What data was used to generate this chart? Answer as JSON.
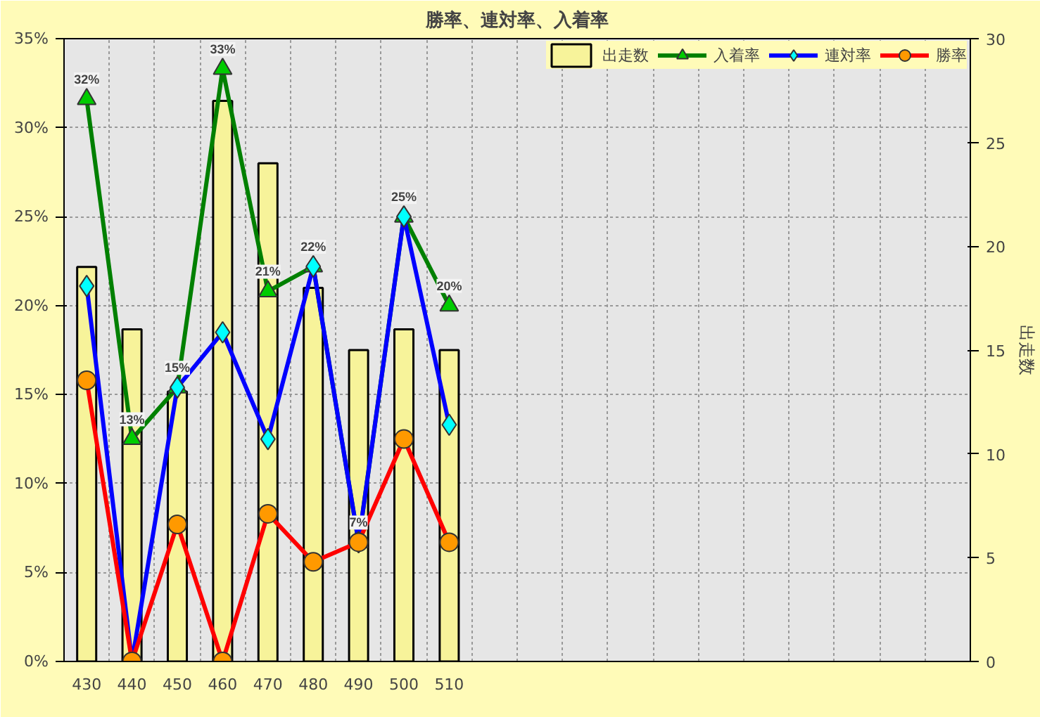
{
  "chart_data": {
    "type": "line",
    "title": "勝率、連対率、入着率",
    "y2label": "出走数",
    "categories": [
      "430",
      "440",
      "450",
      "460",
      "470",
      "480",
      "490",
      "500",
      "510",
      null,
      null,
      null,
      null,
      null,
      null,
      null,
      null,
      null,
      null,
      null
    ],
    "series": [
      {
        "name": "出走数",
        "type": "bar",
        "axis": "y2",
        "color": "#f7f39a",
        "values": [
          19,
          16,
          13,
          27,
          24,
          18,
          15,
          16,
          15,
          null,
          null,
          null,
          null,
          null,
          null,
          null,
          null,
          null,
          null,
          null
        ]
      },
      {
        "name": "入着率",
        "marker": "triangle",
        "color": "#008000",
        "values": [
          31.6,
          12.5,
          15.4,
          33.3,
          20.8,
          22.2,
          6.7,
          25,
          20,
          null,
          null,
          null,
          null,
          null,
          null,
          null,
          null,
          null,
          null,
          null
        ],
        "value_labels": [
          "32%",
          "13%",
          "15%",
          "33%",
          "21%",
          "22%",
          "7%",
          "25%",
          "20%",
          null,
          null,
          null,
          null,
          null,
          null,
          null,
          null,
          null,
          null,
          null
        ]
      },
      {
        "name": "連対率",
        "marker": "diamond",
        "color": "#0000ff",
        "values": [
          21.1,
          0,
          15.4,
          18.5,
          12.5,
          22.2,
          6.7,
          25,
          13.3,
          null,
          null,
          null,
          null,
          null,
          null,
          null,
          null,
          null,
          null,
          null
        ]
      },
      {
        "name": "勝率",
        "marker": "circle",
        "color": "#ff0000",
        "values": [
          15.8,
          0,
          7.7,
          0,
          8.3,
          5.6,
          6.7,
          12.5,
          6.7,
          null,
          null,
          null,
          null,
          null,
          null,
          null,
          null,
          null,
          null,
          null
        ]
      }
    ],
    "ylim": [
      0,
      35
    ],
    "yticks": [
      {
        "value": 0,
        "label": "0%"
      },
      {
        "value": 5,
        "label": "5%"
      },
      {
        "value": 10,
        "label": "10%"
      },
      {
        "value": 15,
        "label": "15%"
      },
      {
        "value": 20,
        "label": "20%"
      },
      {
        "value": 25,
        "label": "25%"
      },
      {
        "value": 30,
        "label": "30%"
      },
      {
        "value": 35,
        "label": "35%"
      }
    ],
    "y2lim": [
      0,
      30
    ],
    "y2ticks": [
      0,
      5,
      10,
      15,
      20,
      25,
      30
    ],
    "grid": true,
    "legend": "top right",
    "line_style": "solid"
  }
}
